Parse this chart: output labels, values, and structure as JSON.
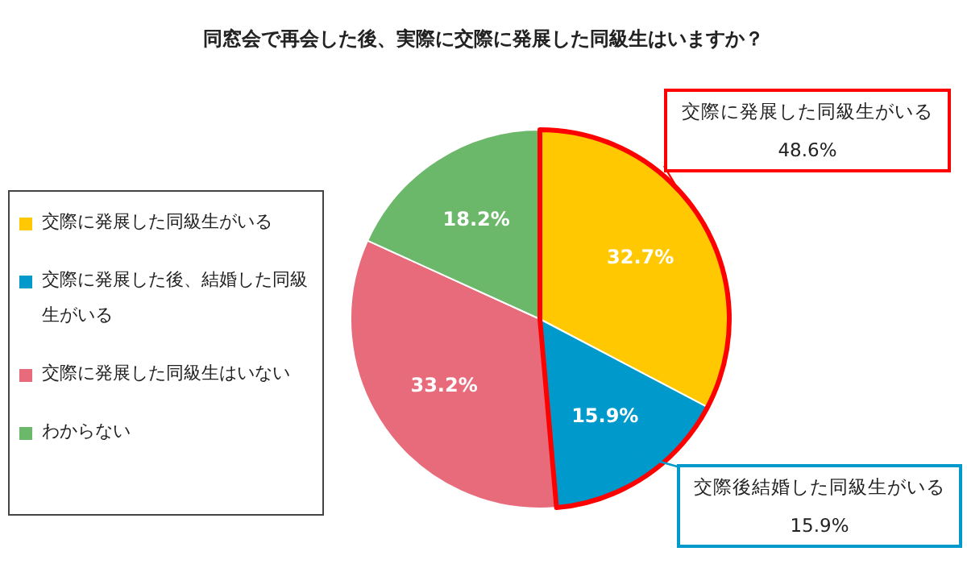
{
  "chart_data": {
    "type": "pie",
    "title": "同窓会で再会した後、実際に交際に発展した同級生はいますか？",
    "categories": [
      "交際に発展した同級生がいる",
      "交際に発展した後、結婚した同級生がいる",
      "交際に発展した同級生はいない",
      "わからない"
    ],
    "values": [
      32.7,
      15.9,
      33.2,
      18.2
    ],
    "colors": [
      "#ffc800",
      "#0099cc",
      "#e86b7c",
      "#6cb86a"
    ],
    "value_labels": [
      "32.7%",
      "15.9%",
      "33.2%",
      "18.2%"
    ],
    "legend": "left",
    "annotations": [
      "交際に発展した同級生がいる\n48.6%",
      "交際後結婚した同級生がいる\n15.9%"
    ]
  }
}
